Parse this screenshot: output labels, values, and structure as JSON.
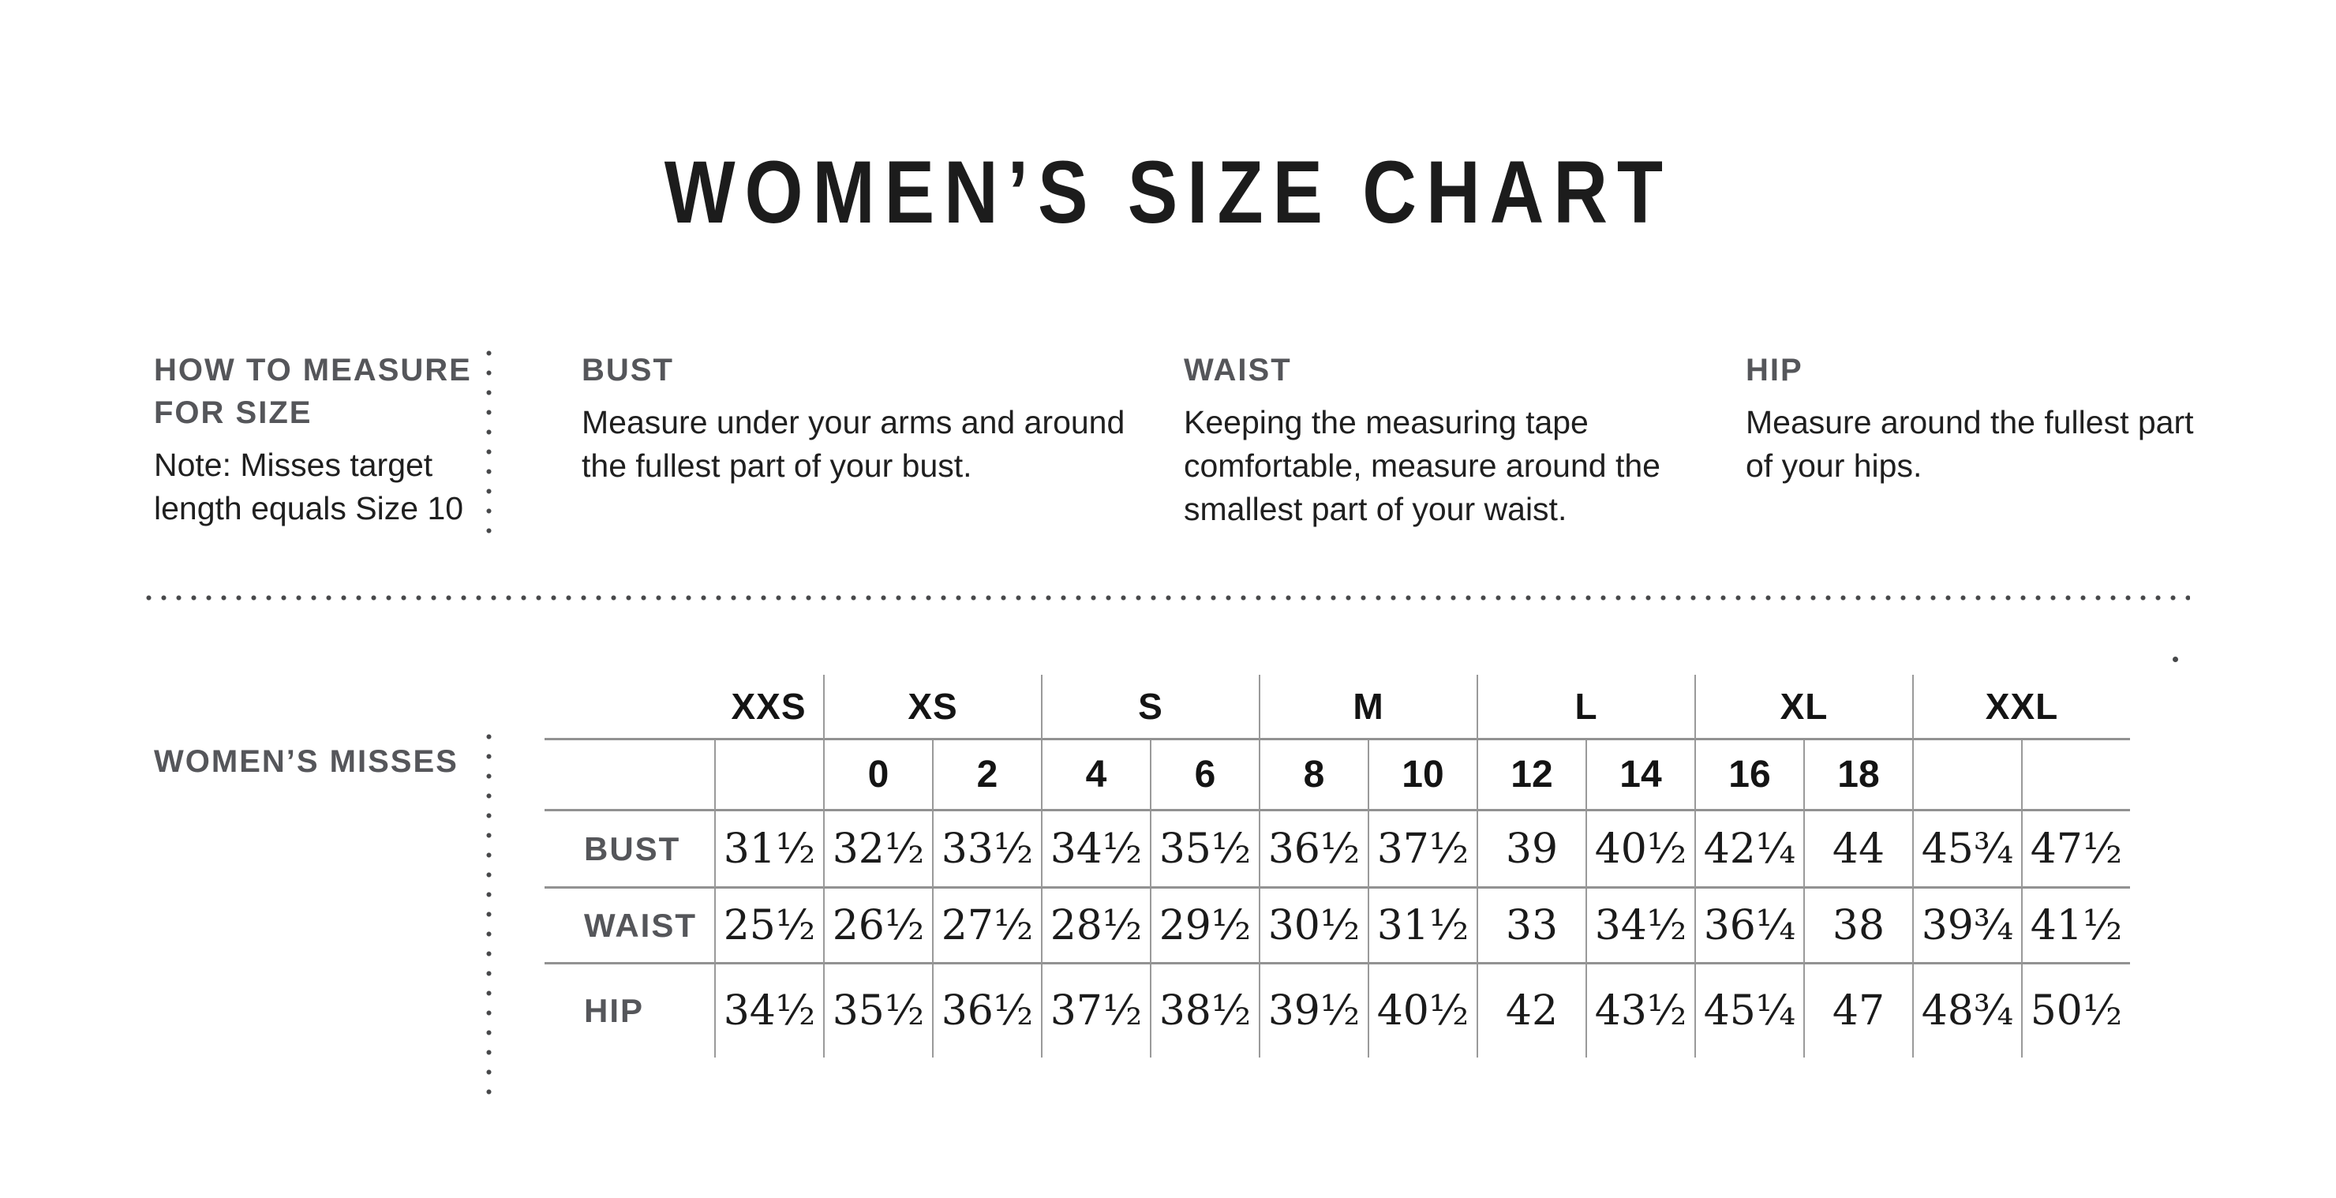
{
  "page": {
    "title": "WOMEN’S SIZE CHART"
  },
  "colors": {
    "heading_gray": "#55565a",
    "text_black": "#1d1d1b",
    "table_line": "#9a9a9a",
    "dot_color": "#47484a",
    "background": "#ffffff"
  },
  "how_to_measure": {
    "heading_lines": [
      "HOW TO MEASURE",
      "FOR SIZE"
    ],
    "note_lines": [
      "Note: Misses target",
      "length equals Size 10"
    ],
    "sections": [
      {
        "heading": "BUST",
        "lines": [
          "Measure under your arms and around",
          "the fullest part of your bust."
        ]
      },
      {
        "heading": "WAIST",
        "lines": [
          "Keeping the measuring tape",
          "comfortable, measure around the",
          "smallest part of your waist."
        ]
      },
      {
        "heading": "HIP",
        "lines": [
          "Measure around the fullest part",
          "of your hips."
        ]
      }
    ]
  },
  "size_table": {
    "section_label": "WOMEN’S MISSES",
    "group_headers": [
      {
        "label": "XXS",
        "span": 1
      },
      {
        "label": "XS",
        "span": 2
      },
      {
        "label": "S",
        "span": 2
      },
      {
        "label": "M",
        "span": 2
      },
      {
        "label": "L",
        "span": 2
      },
      {
        "label": "XL",
        "span": 2
      },
      {
        "label": "XXL",
        "span": 2
      }
    ],
    "numeric_sizes": [
      "",
      "0",
      "2",
      "4",
      "6",
      "8",
      "10",
      "12",
      "14",
      "16",
      "18",
      "",
      ""
    ],
    "rows": [
      {
        "label": "BUST",
        "values": [
          "31½",
          "32½",
          "33½",
          "34½",
          "35½",
          "36½",
          "37½",
          "39",
          "40½",
          "42¼",
          "44",
          "45¾",
          "47½"
        ]
      },
      {
        "label": "WAIST",
        "values": [
          "25½",
          "26½",
          "27½",
          "28½",
          "29½",
          "30½",
          "31½",
          "33",
          "34½",
          "36¼",
          "38",
          "39¾",
          "41½"
        ]
      },
      {
        "label": "HIP",
        "values": [
          "34½",
          "35½",
          "36½",
          "37½",
          "38½",
          "39½",
          "40½",
          "42",
          "43½",
          "45¼",
          "47",
          "48¾",
          "50½"
        ]
      }
    ]
  }
}
